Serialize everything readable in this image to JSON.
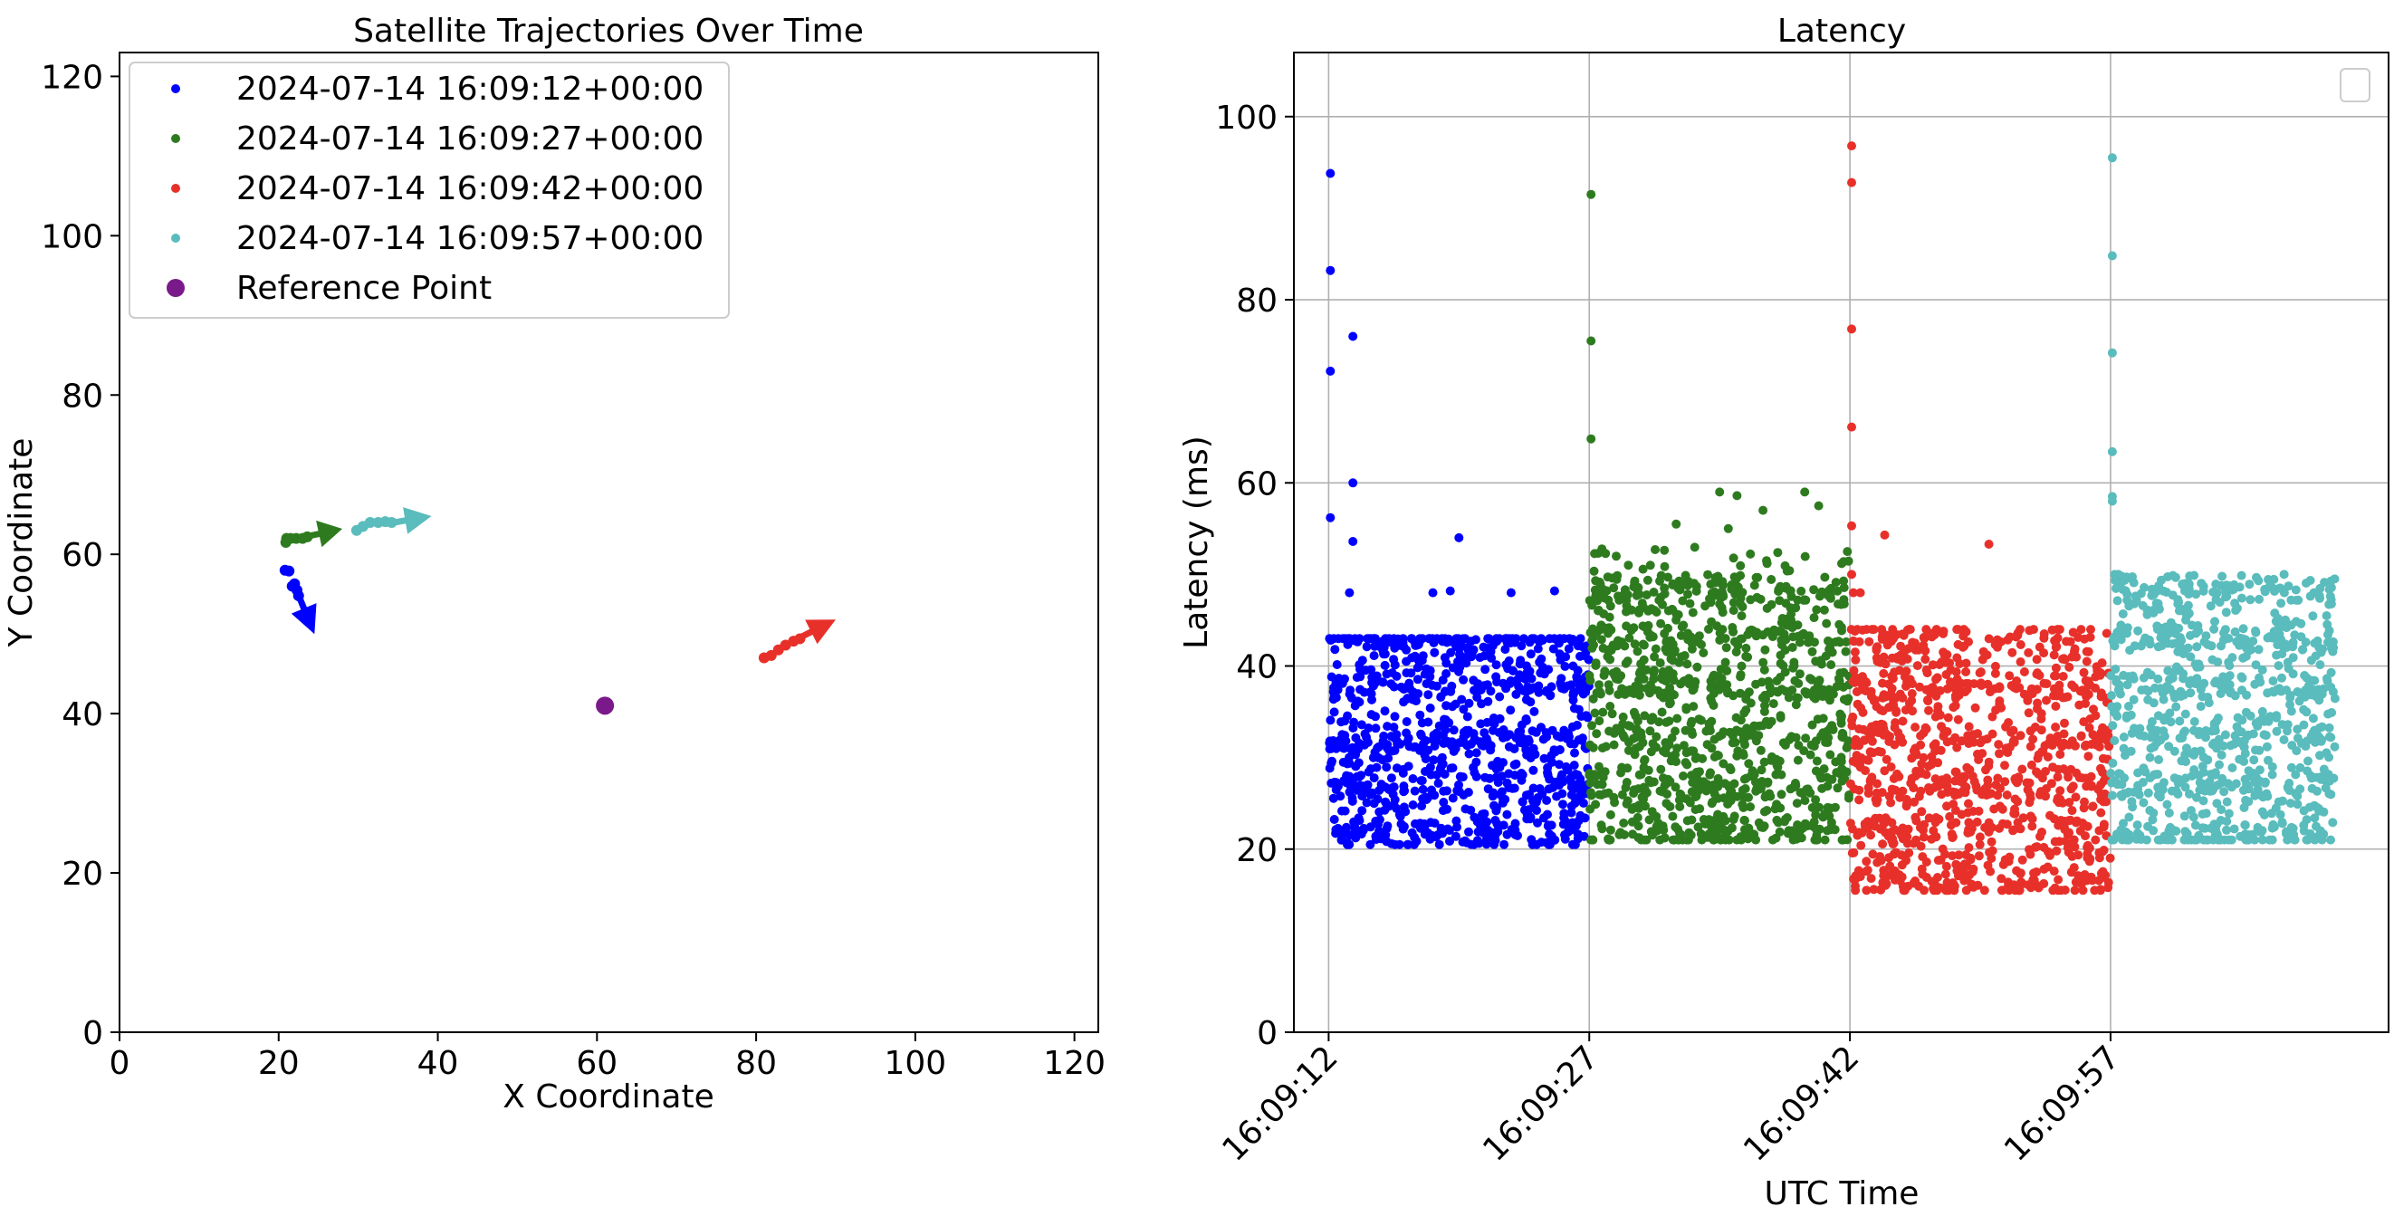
{
  "chart_data": [
    {
      "type": "scatter",
      "title": "Satellite Trajectories Over Time",
      "xlabel": "X Coordinate",
      "ylabel": "Y Coordinate",
      "xlim": [
        0,
        123
      ],
      "ylim": [
        0,
        123
      ],
      "xticks": [
        0,
        20,
        40,
        60,
        80,
        100,
        120
      ],
      "yticks": [
        0,
        20,
        40,
        60,
        80,
        100,
        120
      ],
      "xtick_labels": [
        "0",
        "20",
        "40",
        "60",
        "80",
        "100",
        "120"
      ],
      "ytick_labels": [
        "0",
        "20",
        "40",
        "60",
        "80",
        "100",
        "120"
      ],
      "grid": false,
      "legend_position": "top-left",
      "series": [
        {
          "name": "2024-07-14 16:09:12+00:00",
          "color": "#0000ff",
          "x": [
            20.8,
            21.3,
            21.7,
            22.0,
            22.5,
            22.3
          ],
          "y": [
            58.0,
            57.9,
            56.0,
            56.3,
            54.8,
            55.5
          ],
          "arrow": {
            "from": [
              22.6,
              54.6
            ],
            "to": [
              24.5,
              50.0
            ]
          }
        },
        {
          "name": "2024-07-14 16:09:27+00:00",
          "color": "#2e7b1f",
          "x": [
            20.9,
            21.5,
            22.2,
            23.0,
            23.6,
            21.0
          ],
          "y": [
            61.5,
            62.0,
            62.0,
            62.0,
            62.2,
            62.0
          ],
          "arrow": {
            "from": [
              23.8,
              62.3
            ],
            "to": [
              28.0,
              63.2
            ]
          }
        },
        {
          "name": "2024-07-14 16:09:42+00:00",
          "color": "#e8302a",
          "x": [
            81.0,
            81.9,
            82.8,
            83.7,
            84.7,
            85.5
          ],
          "y": [
            47.0,
            47.3,
            48.0,
            48.6,
            49.1,
            49.4
          ],
          "arrow": {
            "from": [
              85.6,
              49.6
            ],
            "to": [
              90.0,
              51.8
            ]
          }
        },
        {
          "name": "2024-07-14 16:09:57+00:00",
          "color": "#5abcbc",
          "x": [
            29.8,
            30.6,
            31.5,
            32.5,
            33.4,
            34.2
          ],
          "y": [
            63.0,
            63.5,
            64.0,
            64.0,
            64.1,
            64.0
          ],
          "arrow": {
            "from": [
              34.5,
              64.0
            ],
            "to": [
              39.2,
              64.8
            ]
          }
        }
      ],
      "reference_point": {
        "name": "Reference Point",
        "color": "#7a1a8a",
        "x": 61.0,
        "y": 41.0
      }
    },
    {
      "type": "scatter",
      "title": "Latency",
      "xlabel": "UTC Time",
      "ylabel": "Latency (ms)",
      "ylim": [
        0,
        107
      ],
      "yticks": [
        0,
        20,
        40,
        60,
        80,
        100
      ],
      "ytick_labels": [
        "0",
        "20",
        "40",
        "60",
        "80",
        "100"
      ],
      "xlim": [
        "16:09:10",
        "16:10:13"
      ],
      "xticks": [
        "16:09:12",
        "16:09:27",
        "16:09:42",
        "16:09:57"
      ],
      "xtick_labels": [
        "16:09:12",
        "16:09:27",
        "16:09:42",
        "16:09:57"
      ],
      "grid": true,
      "legend_position": "top-right",
      "legend_entries": [],
      "series": [
        {
          "color": "#0000ff",
          "t_start": "16:09:12",
          "t_end": "16:09:27",
          "bands": [
            22,
            27,
            32,
            38,
            42.5
          ],
          "bulk_range": [
            20.5,
            43
          ],
          "n": 900,
          "outliers": [
            {
              "t": "16:09:12.1",
              "v": 93.8
            },
            {
              "t": "16:09:12.1",
              "v": 83.2
            },
            {
              "t": "16:09:12.1",
              "v": 72.2
            },
            {
              "t": "16:09:13.4",
              "v": 76.0
            },
            {
              "t": "16:09:12.1",
              "v": 56.2
            },
            {
              "t": "16:09:13.4",
              "v": 60.0
            },
            {
              "t": "16:09:13.4",
              "v": 53.6
            },
            {
              "t": "16:09:19.5",
              "v": 54.0
            },
            {
              "t": "16:09:13.2",
              "v": 48.0
            },
            {
              "t": "16:09:18.0",
              "v": 48.0
            },
            {
              "t": "16:09:19.0",
              "v": 48.2
            },
            {
              "t": "16:09:22.5",
              "v": 48.0
            },
            {
              "t": "16:09:25.0",
              "v": 48.2
            }
          ]
        },
        {
          "color": "#2e7b1f",
          "t_start": "16:09:27",
          "t_end": "16:09:42",
          "bands": [
            22,
            27,
            32,
            38,
            43,
            48
          ],
          "bulk_range": [
            21,
            53
          ],
          "n": 1050,
          "outliers": [
            {
              "t": "16:09:27.1",
              "v": 91.5
            },
            {
              "t": "16:09:27.1",
              "v": 75.5
            },
            {
              "t": "16:09:27.1",
              "v": 64.8
            },
            {
              "t": "16:09:34.5",
              "v": 59.0
            },
            {
              "t": "16:09:35.5",
              "v": 58.6
            },
            {
              "t": "16:09:39.4",
              "v": 59.0
            },
            {
              "t": "16:09:40.2",
              "v": 57.5
            },
            {
              "t": "16:09:37.0",
              "v": 57.0
            },
            {
              "t": "16:09:32.0",
              "v": 55.5
            },
            {
              "t": "16:09:35.0",
              "v": 55.0
            }
          ]
        },
        {
          "color": "#e8302a",
          "t_start": "16:09:42",
          "t_end": "16:09:57",
          "bands": [
            16.5,
            22,
            27,
            32,
            37.5,
            42.5
          ],
          "bulk_range": [
            15.5,
            44
          ],
          "n": 1000,
          "outliers": [
            {
              "t": "16:09:42.1",
              "v": 96.8
            },
            {
              "t": "16:09:42.1",
              "v": 92.8
            },
            {
              "t": "16:09:42.1",
              "v": 76.8
            },
            {
              "t": "16:09:42.1",
              "v": 66.1
            },
            {
              "t": "16:09:42.1",
              "v": 55.3
            },
            {
              "t": "16:09:44.0",
              "v": 54.3
            },
            {
              "t": "16:09:50.0",
              "v": 53.3
            },
            {
              "t": "16:09:42.2",
              "v": 48.0
            },
            {
              "t": "16:09:42.6",
              "v": 48.0
            },
            {
              "t": "16:09:42.1",
              "v": 50.0
            }
          ]
        },
        {
          "color": "#5abcbc",
          "t_start": "16:09:57",
          "t_end": "16:10:10",
          "bands": [
            21.5,
            27,
            32,
            38,
            43,
            48
          ],
          "bulk_range": [
            21,
            50
          ],
          "n": 850,
          "outliers": [
            {
              "t": "16:09:57.1",
              "v": 95.5
            },
            {
              "t": "16:09:57.1",
              "v": 84.8
            },
            {
              "t": "16:09:57.1",
              "v": 74.2
            },
            {
              "t": "16:09:57.1",
              "v": 63.4
            },
            {
              "t": "16:09:57.1",
              "v": 58.5
            },
            {
              "t": "16:09:57.1",
              "v": 58.0
            },
            {
              "t": "16:10:09.9",
              "v": 49.5
            },
            {
              "t": "16:10:04.0",
              "v": 48.3
            },
            {
              "t": "16:10:07.0",
              "v": 48.0
            },
            {
              "t": "16:10:08.7",
              "v": 48.0
            }
          ]
        }
      ]
    }
  ]
}
